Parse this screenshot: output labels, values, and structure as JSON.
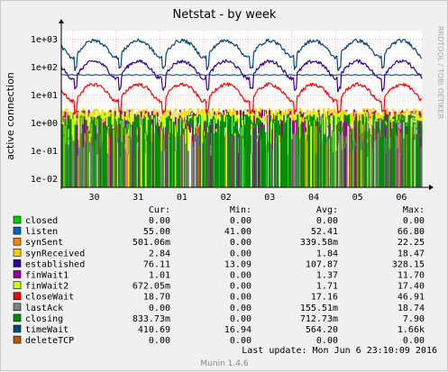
{
  "chart_data": {
    "type": "line",
    "title": "Netstat - by week",
    "ylabel": "active connection",
    "yscale": "log",
    "ylim": [
      0.005,
      2000
    ],
    "y_ticks": [
      "1e+03",
      "1e+02",
      "1e+01",
      "1e+00",
      "1e-01",
      "1e-02"
    ],
    "x_ticks": [
      "30",
      "31",
      "01",
      "02",
      "03",
      "04",
      "05",
      "06"
    ],
    "x_range": [
      "2016-05-29T18:00",
      "2016-06-06T23:10"
    ],
    "grid": true,
    "watermark": "RRDTOOL / TOBI OETIKER",
    "footer": "Munin 1.4.6",
    "columns": [
      "Cur:",
      "Min:",
      "Avg:",
      "Max:"
    ],
    "legend": [
      {
        "name": "closed",
        "color": "#00cc00",
        "cur": "0.00",
        "min": "0.00",
        "avg": "0.00",
        "max": "0.00",
        "profile": "zero"
      },
      {
        "name": "listen",
        "color": "#0066b3",
        "cur": "55.00",
        "min": "41.00",
        "avg": "52.41",
        "max": "66.80",
        "profile": "flat",
        "base": 52
      },
      {
        "name": "synSent",
        "color": "#ff8000",
        "cur": "501.06m",
        "min": "0.00",
        "avg": "339.58m",
        "max": "22.25",
        "profile": "spiky",
        "base": 0.3
      },
      {
        "name": "synReceived",
        "color": "#ffcc00",
        "cur": "2.84",
        "min": "0.00",
        "avg": "1.84",
        "max": "18.47",
        "profile": "noisy",
        "base": 2
      },
      {
        "name": "established",
        "color": "#330099",
        "cur": "76.11",
        "min": "13.09",
        "avg": "107.87",
        "max": "328.15",
        "profile": "daily",
        "base": 100
      },
      {
        "name": "finWait1",
        "color": "#990099",
        "cur": "1.01",
        "min": "0.00",
        "avg": "1.37",
        "max": "11.70",
        "profile": "spiky",
        "base": 1
      },
      {
        "name": "finWait2",
        "color": "#ccff00",
        "cur": "672.05m",
        "min": "0.00",
        "avg": "1.71",
        "max": "17.40",
        "profile": "noisy",
        "base": 1.5
      },
      {
        "name": "closeWait",
        "color": "#ff0000",
        "cur": "18.70",
        "min": "0.00",
        "avg": "17.16",
        "max": "46.91",
        "profile": "daily",
        "base": 15
      },
      {
        "name": "lastAck",
        "color": "#808080",
        "cur": "0.00",
        "min": "0.00",
        "avg": "155.51m",
        "max": "18.74",
        "profile": "spiky",
        "base": 0.15
      },
      {
        "name": "closing",
        "color": "#008f00",
        "cur": "833.73m",
        "min": "0.00",
        "avg": "712.73m",
        "max": "7.90",
        "profile": "spiky",
        "base": 0.7
      },
      {
        "name": "timeWait",
        "color": "#00487d",
        "cur": "410.69",
        "min": "16.94",
        "avg": "564.20",
        "max": "1.66k",
        "profile": "daily",
        "base": 550
      },
      {
        "name": "deleteTCP",
        "color": "#b35a00",
        "cur": "0.00",
        "min": "0.00",
        "avg": "0.00",
        "max": "0.00",
        "profile": "zero"
      }
    ],
    "last_update": "Last update:  Mon Jun  6 23:10:09 2016"
  }
}
